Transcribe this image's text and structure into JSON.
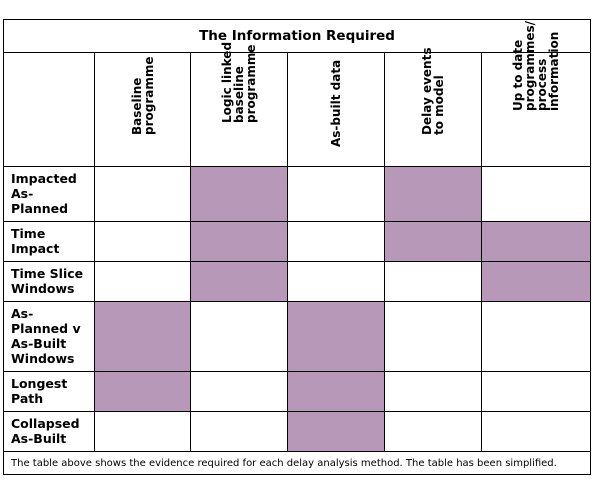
{
  "title": "The Information Required",
  "columns": [
    "Baseline\nprogramme",
    "Logic linked\nbaseline\nprogramme",
    "As-built data",
    "Delay events\nto model",
    "Up to date\nprogrammes/\nprocess\ninformation"
  ],
  "rows": [
    {
      "label": "Impacted\nAs-\nPlanned",
      "marks": [
        false,
        true,
        false,
        true,
        false
      ]
    },
    {
      "label": "Time\nImpact",
      "marks": [
        false,
        true,
        false,
        true,
        true
      ]
    },
    {
      "label": "Time Slice\nWindows",
      "marks": [
        false,
        true,
        false,
        false,
        true
      ]
    },
    {
      "label": "As-\nPlanned v\nAs-Built\nWindows",
      "marks": [
        true,
        false,
        true,
        false,
        false
      ]
    },
    {
      "label": "Longest\nPath",
      "marks": [
        true,
        false,
        true,
        false,
        false
      ]
    },
    {
      "label": "Collapsed\nAs-Built",
      "marks": [
        false,
        false,
        true,
        false,
        false
      ]
    }
  ],
  "footer": "The table above shows the evidence required for each delay analysis method.  The table has been simplified.",
  "colors": {
    "fill": "#b898b8",
    "border": "#000000"
  }
}
